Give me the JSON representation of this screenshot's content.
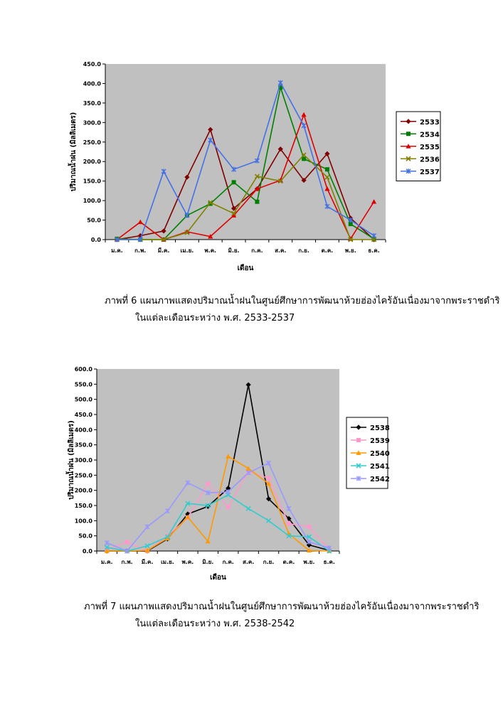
{
  "chart_data": [
    {
      "type": "line",
      "categories": [
        "ม.ค.",
        "ก.พ.",
        "มี.ค.",
        "เม.ย.",
        "พ.ค.",
        "มิ.ย.",
        "ก.ค.",
        "ส.ค.",
        "ก.ย.",
        "ต.ค.",
        "พ.ย.",
        "ธ.ค."
      ],
      "xlabel": "เดือน",
      "ylabel": "ปริมาณน้ำฝน (มิลลิเมตร)",
      "ylim": [
        0,
        450
      ],
      "yticks": [
        "0.0",
        "50.0",
        "100.0",
        "150.0",
        "200.0",
        "250.0",
        "300.0",
        "350.0",
        "400.0",
        "450.0"
      ],
      "grid": false,
      "legend": "right",
      "series": [
        {
          "name": "2533",
          "color": "#800000",
          "marker": "diamond",
          "values": [
            0,
            10,
            22,
            160,
            282,
            80,
            130,
            232,
            152,
            220,
            55,
            0
          ]
        },
        {
          "name": "2534",
          "color": "#008000",
          "marker": "square",
          "values": [
            2,
            0,
            0,
            62,
            92,
            147,
            97,
            390,
            207,
            180,
            40,
            2
          ]
        },
        {
          "name": "2535",
          "color": "#e00000",
          "marker": "triangle",
          "values": [
            0,
            45,
            0,
            20,
            8,
            62,
            130,
            152,
            320,
            130,
            2,
            97
          ]
        },
        {
          "name": "2536",
          "color": "#808000",
          "marker": "x",
          "values": [
            0,
            0,
            0,
            18,
            95,
            67,
            162,
            150,
            217,
            160,
            0,
            0
          ]
        },
        {
          "name": "2537",
          "color": "#4472e4",
          "marker": "star",
          "values": [
            0,
            0,
            175,
            62,
            255,
            180,
            202,
            402,
            292,
            85,
            50,
            10
          ]
        }
      ]
    },
    {
      "type": "line",
      "categories": [
        "ม.ค.",
        "ก.พ.",
        "มี.ค.",
        "เม.ย.",
        "พ.ค.",
        "มิ.ย.",
        "ก.ค.",
        "ส.ค.",
        "ก.ย.",
        "ต.ค.",
        "พ.ย.",
        "ธ.ค."
      ],
      "xlabel": "เดือน",
      "ylabel": "ปริมาณน้ำฝน (มิลลิเมตร)",
      "ylim": [
        0,
        600
      ],
      "yticks": [
        "0.0",
        "50.0",
        "100.0",
        "150.0",
        "200.0",
        "250.0",
        "300.0",
        "350.0",
        "400.0",
        "450.0",
        "500.0",
        "550.0",
        "600.0"
      ],
      "grid": false,
      "legend": "right",
      "series": [
        {
          "name": "2538",
          "color": "#000000",
          "marker": "diamond",
          "values": [
            0,
            0,
            0,
            40,
            122,
            147,
            207,
            548,
            172,
            107,
            20,
            2
          ]
        },
        {
          "name": "2539",
          "color": "#ff99cc",
          "marker": "square",
          "values": [
            5,
            30,
            0,
            50,
            110,
            222,
            145,
            262,
            240,
            90,
            80,
            5
          ]
        },
        {
          "name": "2540",
          "color": "#ff9900",
          "marker": "triangle",
          "values": [
            0,
            0,
            2,
            42,
            112,
            32,
            312,
            272,
            222,
            57,
            2,
            0
          ]
        },
        {
          "name": "2541",
          "color": "#33cccc",
          "marker": "x",
          "values": [
            12,
            0,
            17,
            47,
            157,
            150,
            185,
            140,
            100,
            50,
            47,
            0
          ]
        },
        {
          "name": "2542",
          "color": "#9999ff",
          "marker": "star",
          "values": [
            27,
            0,
            80,
            132,
            225,
            192,
            195,
            258,
            290,
            140,
            30,
            10
          ]
        }
      ]
    }
  ],
  "captions": [
    {
      "line1": "ภาพที่ 6   แผนภาพแสดงปริมาณน้ำฝนในศูนย์ศึกษาการพัฒนาห้วยฮ่องไคร้อันเนื่องมาจากพระราชดำริ",
      "line2": "ในแต่ละเดือนระหว่าง พ.ศ. 2533-2537"
    },
    {
      "line1": "ภาพที่ 7   แผนภาพแสดงปริมาณน้ำฝนในศูนย์ศึกษาการพัฒนาห้วยฮ่องไคร้อันเนื่องมาจากพระราชดำริ",
      "line2": "ในแต่ละเดือนระหว่าง พ.ศ. 2538-2542"
    }
  ]
}
